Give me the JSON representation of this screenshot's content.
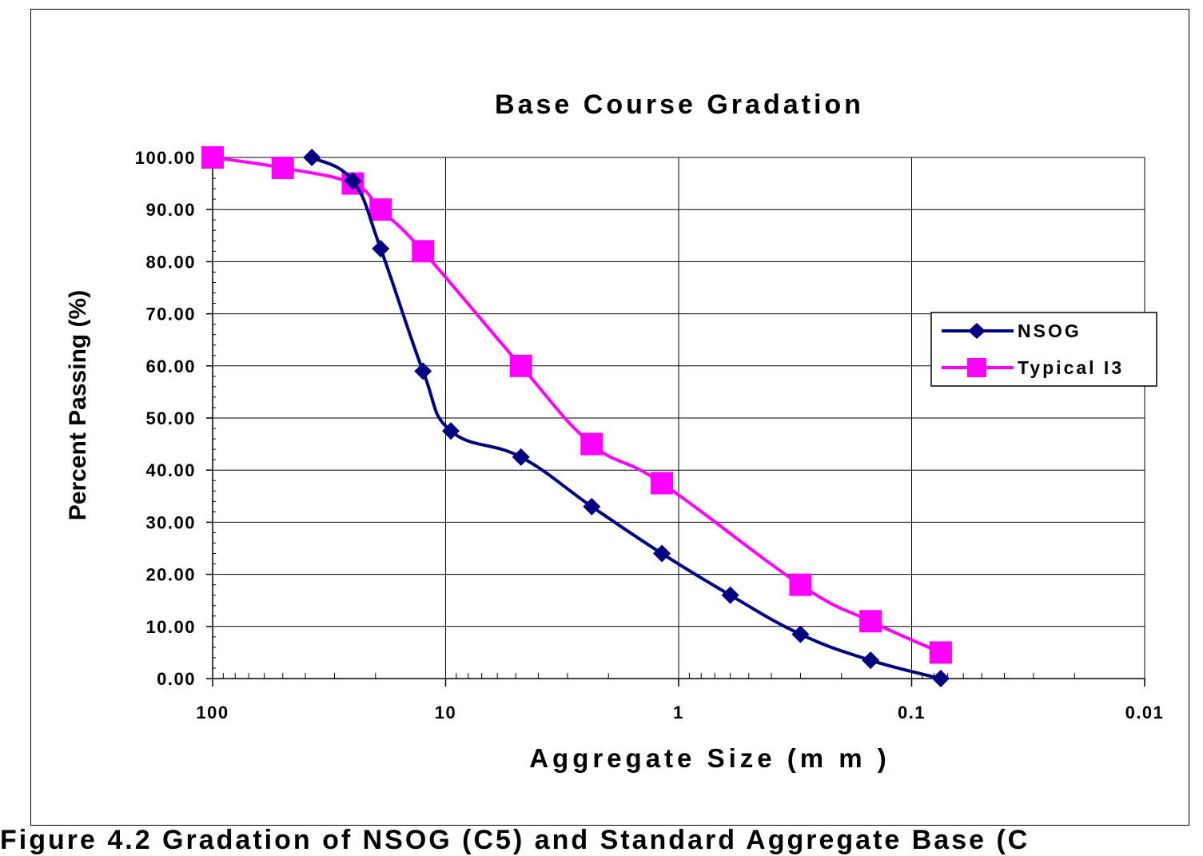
{
  "chart_data": {
    "type": "line",
    "title": "Base Course Gradation",
    "xlabel": "Aggregate Size (m m )",
    "ylabel": "Percent Passing (%)",
    "x_scale": "log",
    "x_reversed": true,
    "xlim": [
      100,
      0.01
    ],
    "ylim": [
      0,
      100
    ],
    "x_ticks": [
      100,
      10,
      1,
      0.1,
      0.01
    ],
    "x_tick_labels": [
      "100",
      "10",
      "1",
      "0.1",
      "0.01"
    ],
    "y_ticks": [
      0,
      10,
      20,
      30,
      40,
      50,
      60,
      70,
      80,
      90,
      100
    ],
    "y_tick_labels": [
      "0.00",
      "10.00",
      "20.00",
      "30.00",
      "40.00",
      "50.00",
      "60.00",
      "70.00",
      "80.00",
      "90.00",
      "100.00"
    ],
    "grid": true,
    "legend_position": "right",
    "series": [
      {
        "name": "NSOG",
        "color": "#000080",
        "marker": "diamond",
        "x": [
          37.5,
          25,
          19,
          12.5,
          9.5,
          4.75,
          2.36,
          1.18,
          0.6,
          0.3,
          0.15,
          0.075
        ],
        "y": [
          100,
          95.5,
          82.5,
          59,
          47.5,
          42.5,
          33,
          24,
          16,
          8.5,
          3.5,
          0
        ]
      },
      {
        "name": "Typical I3",
        "color": "#FF00FF",
        "marker": "square",
        "x": [
          100,
          50,
          25,
          19,
          12.5,
          4.75,
          2.36,
          1.18,
          0.3,
          0.15,
          0.075
        ],
        "y": [
          100,
          98,
          95,
          90,
          82,
          60,
          45,
          37.5,
          18,
          11,
          5
        ]
      }
    ]
  },
  "caption": "Figure 4.2 Gradation of NSOG (C5) and Standard Aggregate Base (C"
}
